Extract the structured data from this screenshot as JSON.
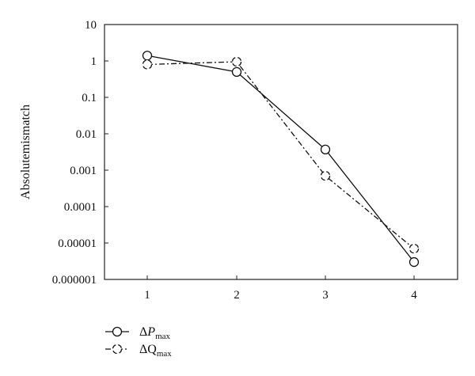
{
  "chart_data": {
    "type": "line",
    "x": [
      1,
      2,
      3,
      4
    ],
    "x_ticks": [
      "1",
      "2",
      "3",
      "4"
    ],
    "ylabel": "Absolutemismatch",
    "yscale": "log",
    "ylim": [
      1e-06,
      10
    ],
    "y_ticks": [
      "10",
      "1",
      "0.1",
      "0.01",
      "0.001",
      "0.0001",
      "0.00001",
      "0.000001"
    ],
    "grid": false,
    "legend_position": "bottom-left",
    "series": [
      {
        "name": "ΔPmax",
        "legend": {
          "prefix": "Δ",
          "symbol": "P",
          "subscript": "max"
        },
        "line_style": "solid",
        "marker": "circle",
        "values": [
          1.4,
          0.5,
          0.0037,
          3e-06
        ]
      },
      {
        "name": "ΔQmax",
        "legend": {
          "prefix": "Δ",
          "symbol": "Q",
          "subscript": "max"
        },
        "line_style": "dash-dot",
        "marker": "dashed-circle",
        "values": [
          0.8,
          0.95,
          0.0007,
          7e-06
        ]
      }
    ]
  }
}
